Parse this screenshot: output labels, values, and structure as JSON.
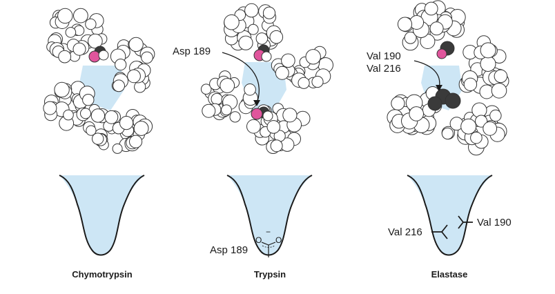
{
  "colors": {
    "pocket": "#cde6f5",
    "outline": "#1a1a1a",
    "sphere_fill": "#ffffff",
    "sphere_edge": "#333333",
    "pink": "#e0559c",
    "dark": "#3a3a3a"
  },
  "panels": [
    {
      "id": "chymotrypsin",
      "name": "Chymotrypsin",
      "model_labels": [],
      "pocket_labels": [],
      "pocket_group": "none"
    },
    {
      "id": "trypsin",
      "name": "Trypsin",
      "model_labels": [
        "Asp 189"
      ],
      "pocket_labels": [
        "Asp 189"
      ],
      "carboxylate": {
        "o1": "O",
        "o2": "O",
        "charge": "−"
      },
      "pocket_group": "carboxylate"
    },
    {
      "id": "elastase",
      "name": "Elastase",
      "model_labels": [
        "Val 190",
        "Val 216"
      ],
      "pocket_labels": [
        "Val 216",
        "Val 190"
      ],
      "pocket_group": "valines"
    }
  ]
}
